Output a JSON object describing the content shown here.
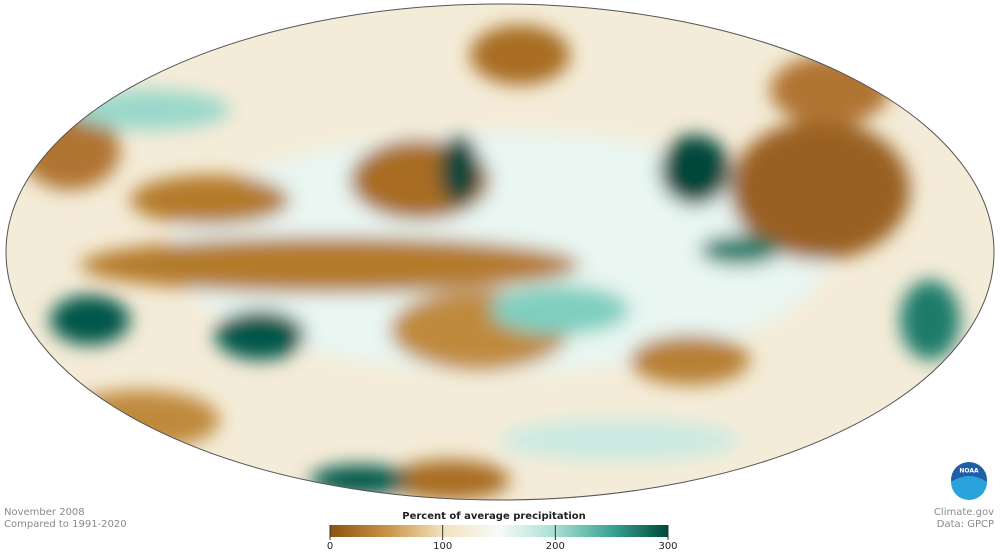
{
  "caption": {
    "date": "November 2008",
    "baseline": "Compared to 1991-2020"
  },
  "credits": {
    "site": "Climate.gov",
    "source": "Data: GPCP",
    "logo": "NOAA"
  },
  "colorbar": {
    "title": "Percent of average precipitation",
    "lim": [
      0,
      300
    ],
    "ticks": [
      0,
      100,
      200,
      300
    ],
    "colors": [
      "#8c5210",
      "#c99245",
      "#f2e2bd",
      "#f7fbf9",
      "#a8ded2",
      "#3ba592",
      "#00473a"
    ]
  }
}
